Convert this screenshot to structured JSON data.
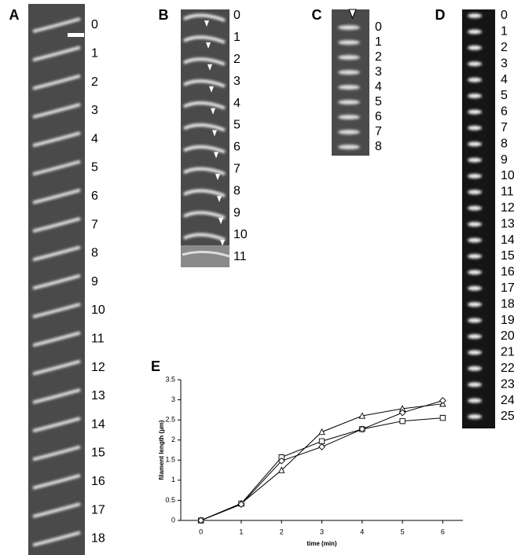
{
  "panels": [
    {
      "label": "A",
      "frames": [
        0,
        1,
        2,
        3,
        4,
        5,
        6,
        7,
        8,
        9,
        10,
        11,
        12,
        13,
        14,
        15,
        16,
        17,
        18
      ]
    },
    {
      "label": "B",
      "frames": [
        0,
        1,
        2,
        3,
        4,
        5,
        6,
        7,
        8,
        9,
        10,
        11
      ]
    },
    {
      "label": "C",
      "frames": [
        0,
        1,
        2,
        3,
        4,
        5,
        6,
        7,
        8
      ]
    },
    {
      "label": "D",
      "frames": [
        0,
        1,
        2,
        3,
        4,
        5,
        6,
        7,
        8,
        9,
        10,
        11,
        12,
        13,
        14,
        15,
        16,
        17,
        18,
        19,
        20,
        21,
        22,
        23,
        24,
        25
      ]
    }
  ],
  "chart_data": {
    "type": "line",
    "panel_label": "E",
    "x_label": "time (min)",
    "y_label": "filament length (µm)",
    "x": [
      0,
      1,
      2,
      3,
      4,
      5,
      6
    ],
    "series": [
      {
        "marker": "triangle",
        "color": "#000000",
        "values": [
          0,
          0.42,
          1.25,
          2.2,
          2.6,
          2.78,
          2.9
        ]
      },
      {
        "marker": "square",
        "color": "#000000",
        "values": [
          0,
          0.42,
          1.57,
          1.97,
          2.27,
          2.47,
          2.55
        ]
      },
      {
        "marker": "diamond",
        "color": "#000000",
        "values": [
          0,
          0.4,
          1.48,
          1.83,
          2.27,
          2.68,
          2.98
        ]
      }
    ],
    "xlim": [
      -0.5,
      6.5
    ],
    "ylim": [
      0,
      3.5
    ],
    "xticks": [
      0,
      1,
      2,
      3,
      4,
      5,
      6
    ],
    "yticks": [
      0,
      0.5,
      1,
      1.5,
      2,
      2.5,
      3,
      3.5
    ],
    "grid": false
  }
}
